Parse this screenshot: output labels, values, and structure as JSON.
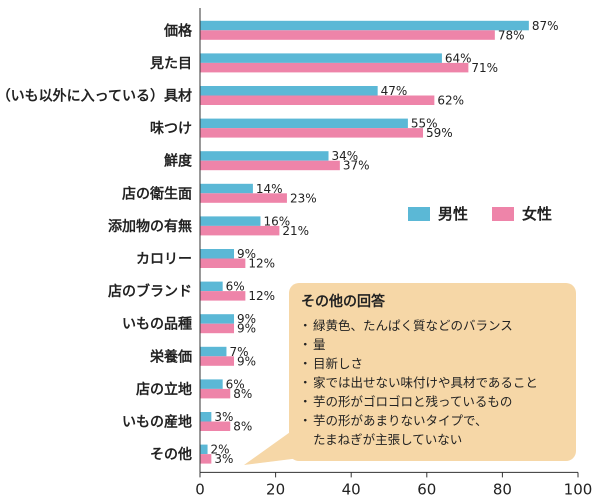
{
  "chart_data": {
    "type": "bar",
    "orientation": "horizontal",
    "categories": [
      "価格",
      "見た目",
      "（いも以外に入っている）具材",
      "味つけ",
      "鮮度",
      "店の衛生面",
      "添加物の有無",
      "カロリー",
      "店のブランド",
      "いもの品種",
      "栄養価",
      "店の立地",
      "いもの産地",
      "その他"
    ],
    "series": [
      {
        "name": "男性",
        "values": [
          87,
          64,
          47,
          55,
          34,
          14,
          16,
          9,
          6,
          9,
          7,
          6,
          3,
          2
        ],
        "color": "#5bb8d6"
      },
      {
        "name": "女性",
        "values": [
          78,
          71,
          62,
          59,
          37,
          23,
          21,
          12,
          12,
          9,
          9,
          8,
          8,
          3
        ],
        "color": "#ee84a9"
      }
    ],
    "value_suffix": "%",
    "xlim": [
      0,
      100
    ],
    "xticks": [
      0,
      20,
      40,
      60,
      80,
      100
    ],
    "legend_position": "middle-right",
    "grid": false
  },
  "note": {
    "title": "その他の回答",
    "items": [
      [
        "緑黄色、たんぱく質などのバランス"
      ],
      [
        "量"
      ],
      [
        "目新しさ"
      ],
      [
        "家では出せない味付けや具材であること"
      ],
      [
        "芋の形がゴロゴロと残っているもの"
      ],
      [
        "芋の形があまりないタイプで、",
        "たまねぎが主張していない"
      ]
    ]
  }
}
